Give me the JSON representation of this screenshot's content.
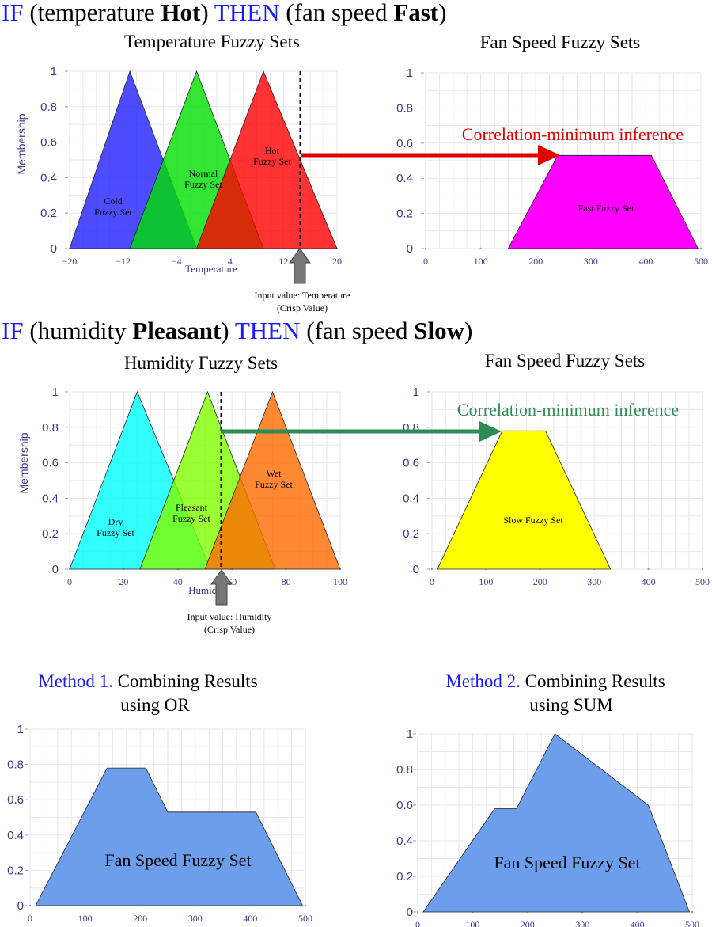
{
  "rules": [
    {
      "if_word": "IF",
      "pre": " (temperature ",
      "term": "Hot",
      "mid": ") ",
      "then_word": "THEN",
      "post": " (fan speed ",
      "out_term": "Fast",
      "end": ")"
    },
    {
      "if_word": "IF",
      "pre": " (humidity ",
      "term": "Pleasant",
      "mid": ") ",
      "then_word": "THEN",
      "post": " (fan speed ",
      "out_term": "Slow",
      "end": ")"
    }
  ],
  "panels": {
    "temp": {
      "title": "Temperature Fuzzy Sets",
      "ylabel": "Membership",
      "xlabel": "Temperature",
      "xticks": [
        "−20",
        "−12",
        "−4",
        "4",
        "12",
        "20"
      ],
      "yticks": [
        "0",
        "0.2",
        "0.4",
        "0.6",
        "0.8",
        "1"
      ],
      "input_label": [
        "Input value: Temperature",
        "(Crisp Value)"
      ]
    },
    "fan1": {
      "title": "Fan Speed Fuzzy Sets",
      "xticks": [
        "0",
        "100",
        "200",
        "300",
        "400",
        "500"
      ],
      "yticks": [
        "0",
        "0.2",
        "0.4",
        "0.6",
        "0.8",
        "1"
      ],
      "inference": "Correlation-minimum inference",
      "set_label": "Fast Fuzzy Set"
    },
    "hum": {
      "title": "Humidity Fuzzy Sets",
      "ylabel": "Membership",
      "xlabel": "Humidity",
      "xticks": [
        "0",
        "20",
        "40",
        "60",
        "80",
        "100"
      ],
      "yticks": [
        "0",
        "0.2",
        "0.4",
        "0.6",
        "0.8",
        "1"
      ],
      "input_label": [
        "Input value: Humidity",
        "(Crisp Value)"
      ]
    },
    "fan2": {
      "title": "Fan Speed Fuzzy Sets",
      "xticks": [
        "0",
        "100",
        "200",
        "300",
        "400",
        "500"
      ],
      "yticks": [
        "0",
        "0.2",
        "0.4",
        "0.6",
        "0.8",
        "1"
      ],
      "inference": "Correlation-minimum inference",
      "set_label": "Slow Fuzzy Set"
    },
    "or": {
      "title_method": "Method 1.",
      "title_rest": " Combining Results",
      "title_line2": "using OR",
      "xticks": [
        "0",
        "100",
        "200",
        "300",
        "400",
        "500"
      ],
      "yticks": [
        "0",
        "0.2",
        "0.4",
        "0.6",
        "0.8",
        "1"
      ],
      "set_label": "Fan Speed Fuzzy Set"
    },
    "sum": {
      "title_method": "Method 2.",
      "title_rest": " Combining Results",
      "title_line2": "using SUM",
      "xticks": [
        "0",
        "100",
        "200",
        "300",
        "400",
        "500"
      ],
      "yticks": [
        "0",
        "0.2",
        "0.4",
        "0.6",
        "0.8",
        "1"
      ],
      "set_label": "Fan Speed Fuzzy Set"
    }
  },
  "sets": {
    "temp": [
      {
        "label": [
          "Cold",
          "Fuzzy Set"
        ],
        "color": "#2020ff",
        "points": [
          [
            -20,
            0
          ],
          [
            -11,
            1
          ],
          [
            -1,
            0
          ]
        ]
      },
      {
        "label": [
          "Normal",
          "Fuzzy Set"
        ],
        "color": "#00e000",
        "points": [
          [
            -11,
            0
          ],
          [
            -1,
            1
          ],
          [
            9,
            0
          ]
        ]
      },
      {
        "label": [
          "Hot",
          "Fuzzy Set"
        ],
        "color": "#ff0000",
        "points": [
          [
            -1,
            0
          ],
          [
            9,
            1
          ],
          [
            20,
            0
          ]
        ]
      }
    ],
    "temp_input": 14.5,
    "fast": {
      "color": "#ff00ff",
      "points": [
        [
          150,
          0
        ],
        [
          240,
          0.53
        ],
        [
          410,
          0.53
        ],
        [
          495,
          0
        ]
      ]
    },
    "hum": [
      {
        "label": [
          "Dry",
          "Fuzzy Set"
        ],
        "color": "#00ffff",
        "points": [
          [
            0,
            0
          ],
          [
            25,
            1
          ],
          [
            52,
            0
          ]
        ]
      },
      {
        "label": [
          "Pleasant",
          "Fuzzy Set"
        ],
        "color": "#7fff00",
        "points": [
          [
            26,
            0
          ],
          [
            51,
            1
          ],
          [
            76,
            0
          ]
        ]
      },
      {
        "label": [
          "Wet",
          "Fuzzy Set"
        ],
        "color": "#ff6a00",
        "points": [
          [
            50,
            0
          ],
          [
            75,
            1
          ],
          [
            100,
            0
          ]
        ]
      }
    ],
    "hum_input": 56,
    "slow": {
      "color": "#ffff00",
      "points": [
        [
          10,
          0
        ],
        [
          130,
          0.78
        ],
        [
          210,
          0.78
        ],
        [
          330,
          0
        ]
      ]
    },
    "or_set": {
      "color": "#6d9eeb",
      "points": [
        [
          10,
          0
        ],
        [
          140,
          0.78
        ],
        [
          210,
          0.78
        ],
        [
          250,
          0.53
        ],
        [
          410,
          0.53
        ],
        [
          495,
          0
        ]
      ]
    },
    "sum_set": {
      "color": "#6d9eeb",
      "points": [
        [
          10,
          0
        ],
        [
          140,
          0.58
        ],
        [
          180,
          0.58
        ],
        [
          250,
          1
        ],
        [
          420,
          0.6
        ],
        [
          495,
          0
        ]
      ]
    }
  },
  "colors": {
    "accent_blue": "#1a1aff",
    "arrow_red": "#e00000",
    "arrow_green": "#2e8b57",
    "axis_text": "#3a3a8c",
    "grid": "#e6e6ee"
  }
}
